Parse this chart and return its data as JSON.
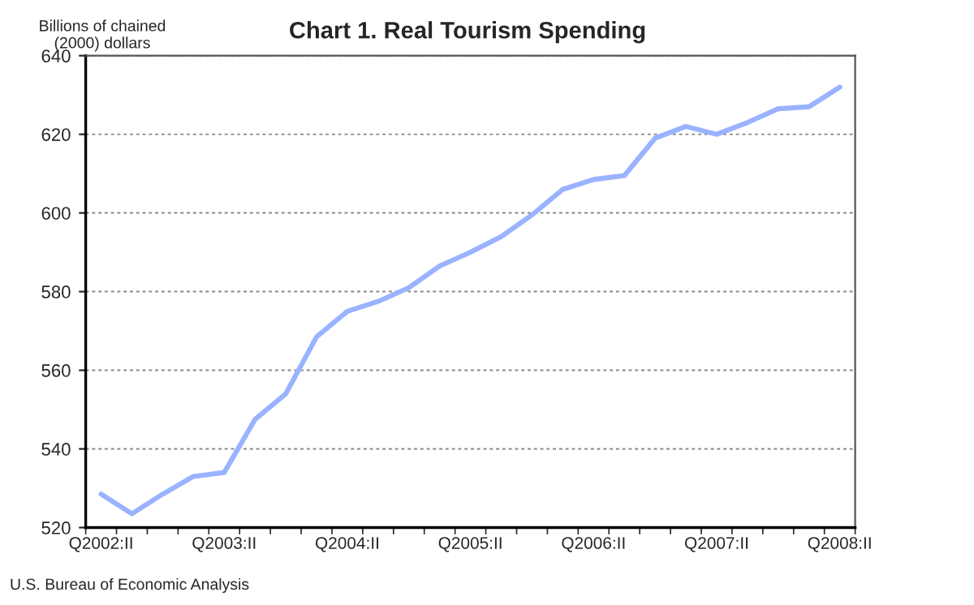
{
  "chart_data": {
    "type": "line",
    "title": "Chart 1. Real Tourism Spending",
    "ylabel": "Billions of chained\n(2000) dollars",
    "categories": [
      "Q2002:II",
      null,
      null,
      null,
      "Q2003:II",
      null,
      null,
      null,
      "Q2004:II",
      null,
      null,
      null,
      "Q2005:II",
      null,
      null,
      null,
      "Q2006:II",
      null,
      null,
      null,
      "Q2007:II",
      null,
      null,
      null,
      "Q2008:II"
    ],
    "series": [
      {
        "color": "#99b3ff",
        "values": [
          528.5,
          523.5,
          528.5,
          533,
          534,
          547.5,
          554,
          568.5,
          575,
          577.5,
          581,
          586.5,
          590,
          594,
          599.5,
          606,
          608.5,
          609.5,
          619,
          622,
          620,
          623,
          626.5,
          627,
          632
        ]
      }
    ],
    "ylim": [
      520,
      640
    ],
    "yticks": [
      520,
      540,
      560,
      580,
      600,
      620,
      640
    ],
    "grid": "y",
    "legend": false,
    "marker": "none",
    "line_style": "solid",
    "annotations": [
      "U.S. Bureau of Economic Analysis"
    ]
  }
}
